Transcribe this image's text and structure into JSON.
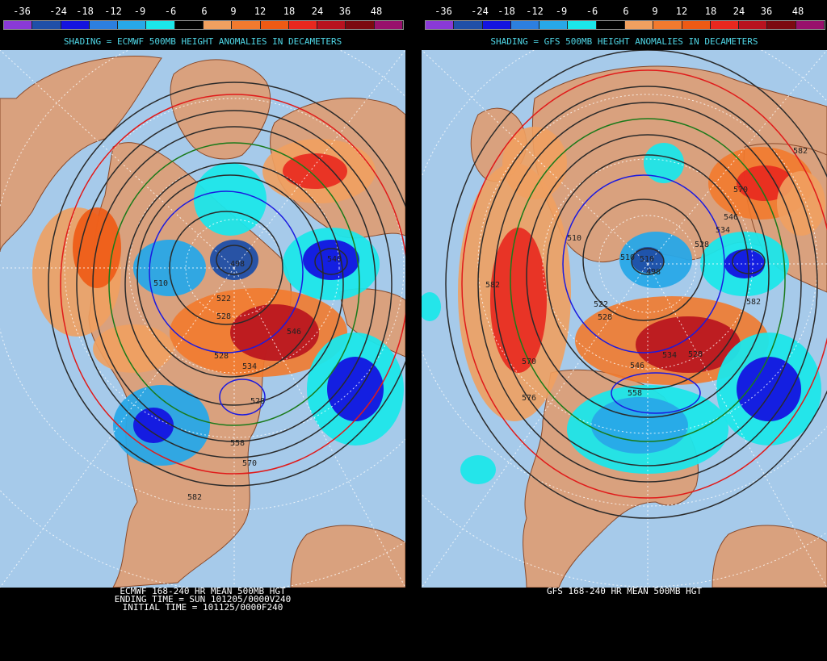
{
  "legend": {
    "labels": [
      "-36",
      "-24",
      "-18",
      "-12",
      "-9",
      "-6",
      "6",
      "9",
      "12",
      "18",
      "24",
      "36",
      "48"
    ],
    "colors": [
      "#8a3ad6",
      "#1f4fa8",
      "#1414e0",
      "#2c7fe0",
      "#28a8e8",
      "#1ce6ea",
      "#000000",
      "#f0a060",
      "#f27a2e",
      "#ee5a14",
      "#e8281e",
      "#b8121e",
      "#7c0a10",
      "#98106c"
    ]
  },
  "left": {
    "shading_title": "SHADING = ECMWF 500MB HEIGHT ANOMALIES IN DECAMETERS",
    "footer": [
      "ECMWF 168-240 HR MEAN 500MB HGT",
      "ENDING TIME = SUN 101205/0000V240",
      "INITIAL TIME = 101125/0000F240"
    ],
    "contour_labels": [
      "510",
      "522",
      "528",
      "528",
      "534",
      "546",
      "528",
      "558",
      "570",
      "582",
      "498",
      "540"
    ]
  },
  "right": {
    "shading_title": "SHADING = GFS 500MB HEIGHT ANOMALIES IN DECAMETERS",
    "footer": [
      "GFS 168-240 HR MEAN 500MB HGT"
    ],
    "contour_labels": [
      "510",
      "510",
      "522",
      "528",
      "528",
      "534",
      "546",
      "558",
      "570",
      "576",
      "582",
      "582",
      "582",
      "570",
      "546",
      "534",
      "528",
      "510",
      "498"
    ]
  },
  "colors": {
    "ocean": "#a6caea",
    "land": "#d9a17e",
    "coast": "#8a4a2a",
    "grid": "#ffffff",
    "contour": "#2a2a2a",
    "contour_blue": "#1a1ae0",
    "contour_green": "#1a7a1a",
    "contour_red": "#e01a1a"
  }
}
